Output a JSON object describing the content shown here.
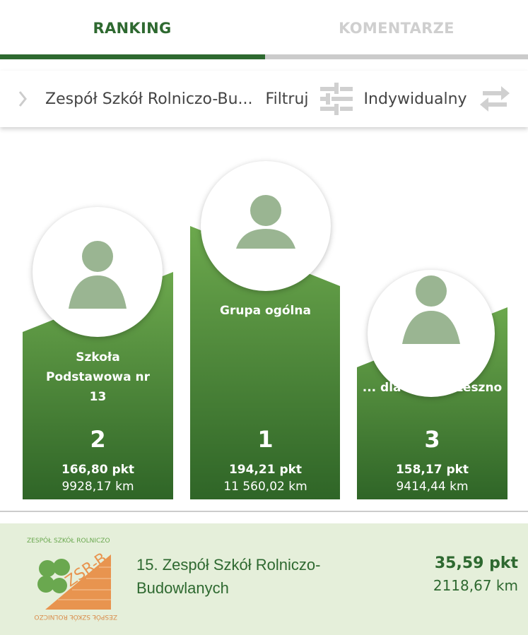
{
  "tabs": [
    {
      "label": "RANKING",
      "active": true
    },
    {
      "label": "KOMENTARZE",
      "active": false
    }
  ],
  "colors": {
    "accent": "#2e6930",
    "inactive": "#cfcfcf",
    "row_bg": "#e5efda",
    "podium_top": "#6aa84f",
    "podium_bottom": "#2f6527",
    "avatar": "#9ab592"
  },
  "filter": {
    "chevron_icon": "chevron-right-icon",
    "school": "Zespół Szkół Rolniczo-Bu...",
    "filter_label": "Filtruj",
    "filter_icon": "sliders-icon",
    "mode": "Indywidualny",
    "swap_icon": "swap-arrows-icon"
  },
  "podium": [
    {
      "rank": "2",
      "name": "Szkoła Podstawowa nr 13",
      "points": "166,80 pkt",
      "km": "9928,17 km"
    },
    {
      "rank": "1",
      "name": "Grupa ogólna",
      "points": "194,21 pkt",
      "km": "11 560,02 km"
    },
    {
      "rank": "3",
      "name": "... dla miasta Leszno",
      "points": "158,17 pkt",
      "km": "9414,44 km"
    }
  ],
  "current": {
    "logo_text": "ZSR-B",
    "logo_ring": "ZESPÓŁ SZKÓŁ ROLNICZO BUDOWLANYCH",
    "name": "15. Zespół Szkół Rolniczo-Budowlanych",
    "points": "35,59 pkt",
    "km": "2118,67 km"
  }
}
